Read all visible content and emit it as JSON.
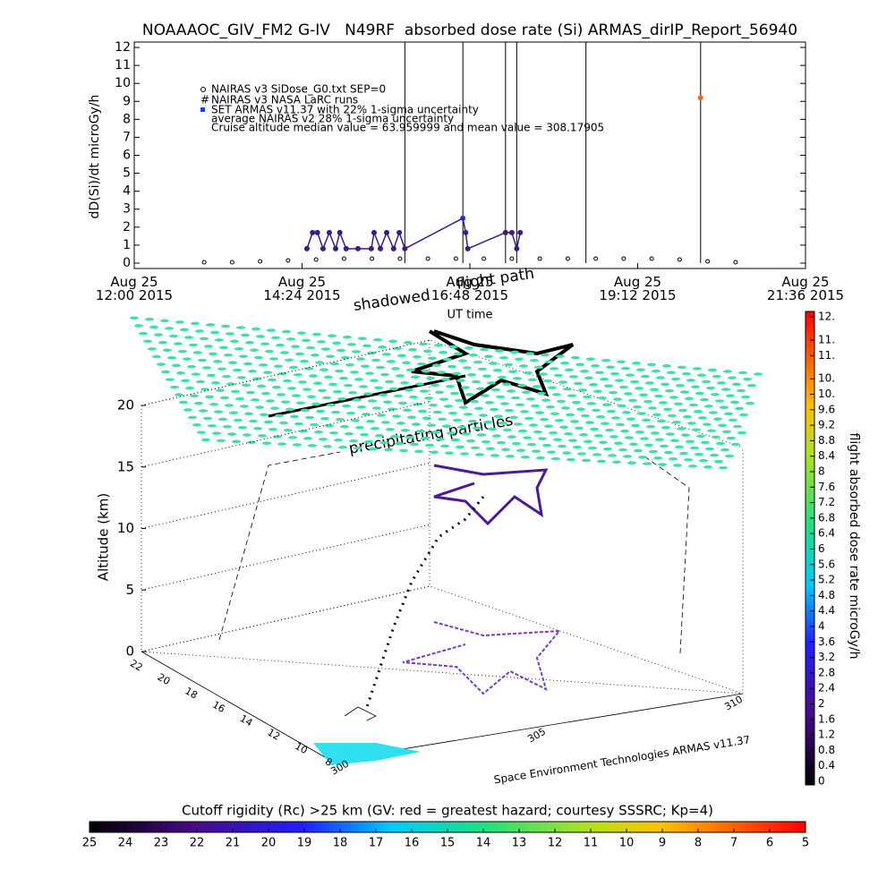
{
  "chart_data": [
    {
      "type": "scatter",
      "title": "NOAAAOC_GIV_FM2 G-IV   N49RF  absorbed dose rate (Si) ARMAS_dirIP_Report_56940",
      "y_label": "dD(Si)/dt microGy/h",
      "x_label": "UT time",
      "xlim": [
        12,
        21.6
      ],
      "xticks": [
        {
          "value": 12,
          "label": "Aug 25\n12:00 2015"
        },
        {
          "value": 14.4,
          "label": "Aug 25\n14:24 2015"
        },
        {
          "value": 16.8,
          "label": "Aug 25\n16:48 2015"
        },
        {
          "value": 19.2,
          "label": "Aug 25\n19:12 2015"
        },
        {
          "value": 21.6,
          "label": "Aug 25\n21:36 2015"
        }
      ],
      "ylim": [
        -0.3,
        12.3
      ],
      "yticks": [
        0,
        1,
        2,
        3,
        4,
        5,
        6,
        7,
        8,
        9,
        10,
        11,
        12
      ],
      "series": [
        {
          "name": "NAIRAS v3 SiDose_G0.txt SEP=0",
          "color": "#000000",
          "x": [
            13.0,
            13.4,
            13.8,
            14.2,
            14.6,
            15.0,
            15.4,
            15.8,
            16.2,
            16.6,
            17.0,
            17.4,
            17.8,
            18.2,
            18.6,
            19.0,
            19.4,
            19.8,
            20.2,
            20.6
          ],
          "values": [
            0.05,
            0.05,
            0.1,
            0.15,
            0.2,
            0.25,
            0.25,
            0.25,
            0.25,
            0.25,
            0.25,
            0.25,
            0.25,
            0.25,
            0.25,
            0.25,
            0.25,
            0.2,
            0.1,
            0.05
          ]
        },
        {
          "name": "NAIRAS v3 NASA LaRC runs",
          "color": "#000000",
          "x": [],
          "values": []
        },
        {
          "name": "SET ARMAS v11.37 with 22% 1-sigma uncertainty",
          "color": "#1a3cff",
          "x": [
            14.47,
            14.55,
            14.62,
            14.7,
            14.79,
            14.88,
            14.94,
            15.03,
            15.2,
            15.39,
            15.43,
            15.52,
            15.61,
            15.71,
            15.79,
            15.87,
            16.7,
            16.74,
            16.77,
            17.31,
            17.4,
            17.47,
            17.52,
            20.1
          ],
          "values": [
            0.8,
            1.7,
            1.7,
            0.8,
            1.7,
            0.8,
            1.7,
            0.8,
            0.8,
            0.8,
            1.7,
            0.8,
            1.7,
            0.8,
            1.7,
            0.8,
            2.5,
            1.7,
            0.8,
            1.7,
            1.7,
            0.8,
            1.7,
            9.2
          ],
          "point_colors": [
            "#3c1a8c",
            "#3c1a8c",
            "#3c1a8c",
            "#3c1a8c",
            "#3c1a8c",
            "#3c1a8c",
            "#3c1a8c",
            "#3c1a8c",
            "#3c1a8c",
            "#3c1a8c",
            "#3c1a8c",
            "#3c1a8c",
            "#3c1a8c",
            "#3c1a8c",
            "#3c1a8c",
            "#3c1a8c",
            "#1a3cff",
            "#2a2ab0",
            "#3c1a8c",
            "#3c1a8c",
            "#3c1a8c",
            "#3c1a8c",
            "#3c1a8c",
            "#ff6a00"
          ]
        }
      ],
      "legend_notes": [
        "average NAIRAS v2 28% 1-sigma uncertainty",
        "Cruise altitude median value = 63.959999 and mean value = 308.17905"
      ],
      "vertical_lines_x": [
        15.87,
        16.7,
        17.31,
        17.47,
        18.46,
        20.1
      ]
    },
    {
      "type": "scatter3d",
      "z_label": "Altitude (km)",
      "zlim": [
        0,
        20
      ],
      "zticks": [
        0,
        5,
        10,
        15,
        20
      ],
      "yticks": [
        22,
        20,
        18,
        16,
        14,
        12,
        10,
        8
      ],
      "xticks": [
        300,
        305,
        310
      ],
      "annotations": [
        "shadowed",
        "flight path",
        "precipitating particles"
      ],
      "credit": "Space Environment Technologies ARMAS v11.37"
    },
    {
      "type": "colorbar",
      "title": "flight absorbed dose rate microGy/h",
      "clim": [
        0,
        12
      ],
      "ticks": [
        0.0,
        0.4,
        0.8,
        1.2,
        1.6,
        2.0,
        2.4,
        2.8,
        3.2,
        3.6,
        4.0,
        4.4,
        4.8,
        5.2,
        5.6,
        6.0,
        6.4,
        6.8,
        7.2,
        7.6,
        8.0,
        8.4,
        8.8,
        9.2,
        9.6,
        {
          "value": 10.0,
          "label": "10."
        },
        {
          "value": 10.4,
          "label": "10."
        },
        {
          "value": 11.0,
          "label": "11."
        },
        {
          "value": 11.4,
          "label": "11."
        },
        {
          "value": 12.0,
          "label": "12."
        }
      ]
    },
    {
      "type": "colorbar",
      "title": "Cutoff rigidity (Rc) >25 km (GV: red = greatest hazard; courtesy SSSRC; Kp=4)",
      "clim": [
        25,
        5
      ],
      "ticks": [
        25,
        24,
        23,
        22,
        21,
        20,
        19,
        18,
        17,
        16,
        15,
        14,
        13,
        12,
        11,
        10,
        9,
        8,
        7,
        6,
        5
      ]
    }
  ]
}
